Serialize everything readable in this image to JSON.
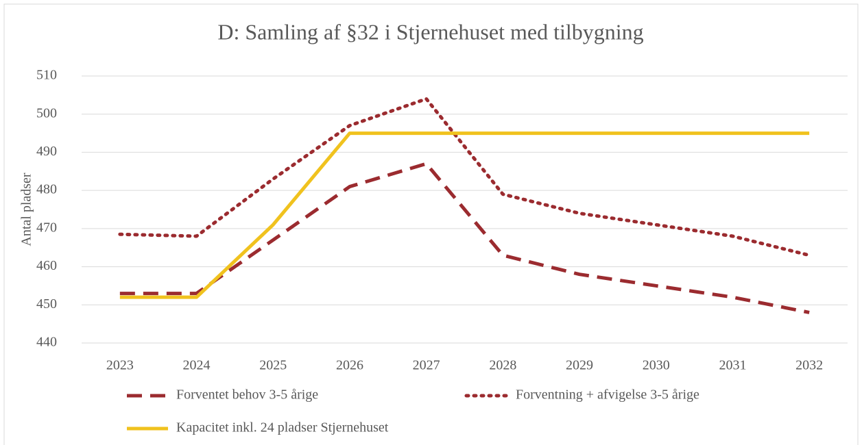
{
  "chart_data": {
    "type": "line",
    "title": "D: Samling af §32 i Stjernehuset med tilbygning",
    "y_label": "Antal pladser",
    "categories": [
      "2023",
      "2024",
      "2025",
      "2026",
      "2027",
      "2028",
      "2029",
      "2030",
      "2031",
      "2032"
    ],
    "series": [
      {
        "name": "Forventet behov 3-5 årige",
        "color": "#9b2b2f",
        "dash": "dashed",
        "values": [
          453,
          453,
          467,
          481,
          487,
          463,
          458,
          455,
          452,
          448
        ]
      },
      {
        "name": "Forventning + afvigelse 3-5 årige",
        "color": "#9b2b2f",
        "dash": "dotted",
        "values": [
          468.5,
          468,
          483,
          497,
          504,
          479,
          474,
          471,
          468,
          463
        ]
      },
      {
        "name": "Kapacitet inkl. 24 pladser Stjernehuset",
        "color": "#f0c21e",
        "dash": "solid",
        "values": [
          452,
          452,
          471,
          495,
          495,
          495,
          495,
          495,
          495,
          495
        ]
      }
    ],
    "ylim": [
      440,
      510
    ],
    "yticks": [
      440,
      450,
      460,
      470,
      480,
      490,
      500,
      510
    ],
    "grid": true
  }
}
